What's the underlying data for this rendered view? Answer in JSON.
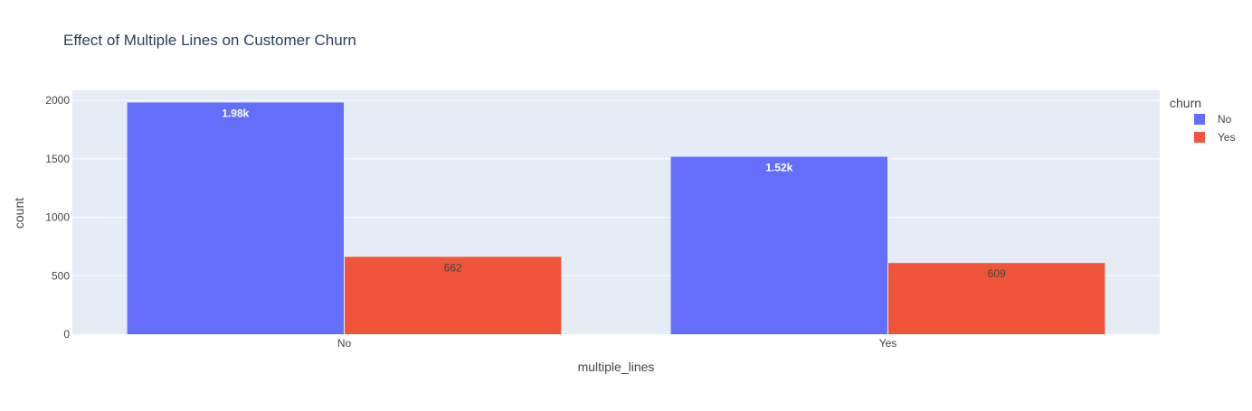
{
  "chart_data": {
    "type": "bar",
    "title": "Effect of Multiple Lines on Customer Churn",
    "xlabel": "multiple_lines",
    "ylabel": "count",
    "categories": [
      "No",
      "Yes"
    ],
    "series": [
      {
        "name": "No",
        "color": "#636efa",
        "values": [
          1982,
          1518
        ],
        "labels": [
          "1.98k",
          "1.52k"
        ],
        "label_color": "#ffffff"
      },
      {
        "name": "Yes",
        "color": "#ef553b",
        "values": [
          662,
          609
        ],
        "labels": [
          "662",
          "609"
        ],
        "label_color": "#444444"
      }
    ],
    "ylim": [
      0,
      2086
    ],
    "yticks": [
      0,
      500,
      1000,
      1500,
      2000
    ],
    "ytick_labels": [
      "0",
      "500",
      "1000",
      "1500",
      "2000"
    ],
    "grid": true,
    "barmode": "group",
    "legend": {
      "title": "churn",
      "position": "top-right",
      "items": [
        "No",
        "Yes"
      ]
    },
    "colors": {
      "plot_background": "#e5ecf6",
      "grid": "#ffffff",
      "text": "#444444",
      "title": "#2a3f5f"
    }
  }
}
